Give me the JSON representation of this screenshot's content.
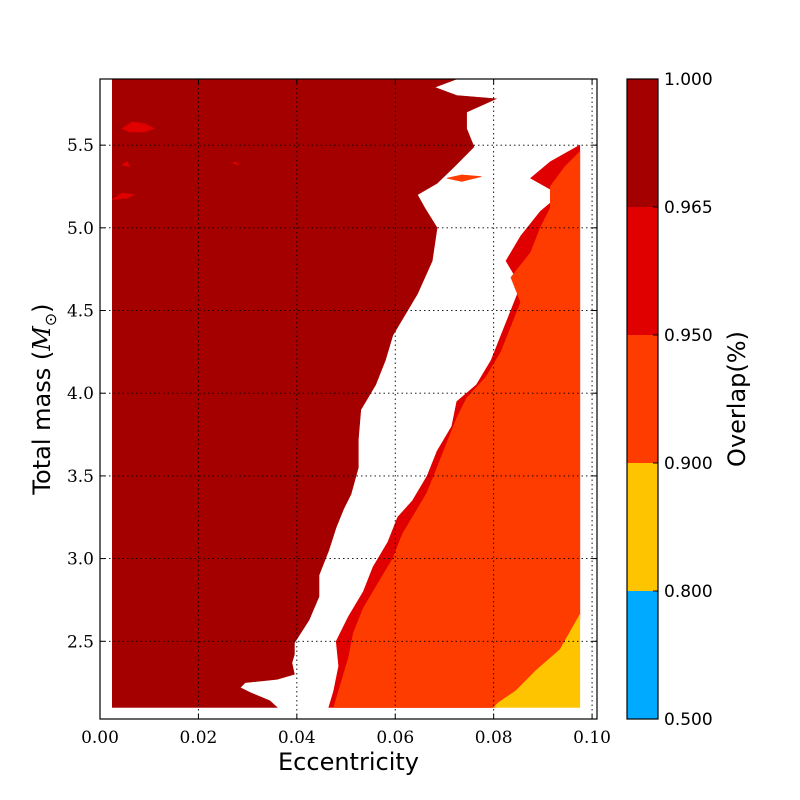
{
  "chart_data": {
    "type": "contourf",
    "xlabel": "Eccentricity",
    "ylabel_text": "Total mass (",
    "ylabel_symbol": "M",
    "ylabel_subscript": "⊙",
    "ylabel_close": ")",
    "xlim": [
      0.0,
      0.101
    ],
    "ylim": [
      2.03,
      5.9
    ],
    "data_extent": {
      "x": [
        0.0025,
        0.0975
      ],
      "y": [
        2.1,
        5.9
      ]
    },
    "xticks": [
      0.0,
      0.02,
      0.04,
      0.06,
      0.08,
      0.1
    ],
    "xtick_labels": [
      "0.00",
      "0.02",
      "0.04",
      "0.06",
      "0.08",
      "0.10"
    ],
    "yticks": [
      2.5,
      3.0,
      3.5,
      4.0,
      4.5,
      5.0,
      5.5
    ],
    "ytick_labels": [
      "2.5",
      "3.0",
      "3.5",
      "4.0",
      "4.5",
      "5.0",
      "5.5"
    ],
    "grid": true,
    "colorbar": {
      "label": "Overlap(%)",
      "levels": [
        "0.500",
        "0.800",
        "0.900",
        "0.950",
        "0.965",
        "1.000"
      ],
      "colors": [
        "#00aaff",
        "#ffc400",
        "#ff3c00",
        "#e00000",
        "#a50000"
      ]
    },
    "regions": [
      {
        "level": "0.965-1.000",
        "color": "#a50000",
        "boundary": [
          [
            0.0025,
            2.1
          ],
          [
            0.036,
            2.1
          ],
          [
            0.0345,
            2.14
          ],
          [
            0.0305,
            2.19
          ],
          [
            0.0285,
            2.22
          ],
          [
            0.0295,
            2.25
          ],
          [
            0.036,
            2.27
          ],
          [
            0.0395,
            2.3
          ],
          [
            0.039,
            2.37
          ],
          [
            0.0395,
            2.42
          ],
          [
            0.0395,
            2.49
          ],
          [
            0.0425,
            2.63
          ],
          [
            0.0445,
            2.77
          ],
          [
            0.0445,
            2.9
          ],
          [
            0.0465,
            3.05
          ],
          [
            0.048,
            3.19
          ],
          [
            0.0495,
            3.3
          ],
          [
            0.051,
            3.39
          ],
          [
            0.0525,
            3.55
          ],
          [
            0.0525,
            3.72
          ],
          [
            0.053,
            3.9
          ],
          [
            0.056,
            4.05
          ],
          [
            0.058,
            4.2
          ],
          [
            0.0595,
            4.35
          ],
          [
            0.0615,
            4.45
          ],
          [
            0.0645,
            4.6
          ],
          [
            0.0675,
            4.8
          ],
          [
            0.0685,
            5.0
          ],
          [
            0.066,
            5.12
          ],
          [
            0.0645,
            5.2
          ],
          [
            0.0685,
            5.27
          ],
          [
            0.072,
            5.37
          ],
          [
            0.076,
            5.49
          ],
          [
            0.0745,
            5.6
          ],
          [
            0.0745,
            5.7
          ],
          [
            0.0805,
            5.78
          ],
          [
            0.0725,
            5.8
          ],
          [
            0.068,
            5.85
          ],
          [
            0.0725,
            5.9
          ],
          [
            0.0025,
            5.9
          ]
        ]
      },
      {
        "level": "0.950-0.965",
        "color": "#e00000",
        "boundary": [
          [
            0.0465,
            2.1
          ],
          [
            0.0805,
            2.1
          ],
          [
            0.0805,
            2.13
          ],
          [
            0.0825,
            2.2
          ],
          [
            0.0885,
            2.32
          ],
          [
            0.0935,
            2.45
          ],
          [
            0.0975,
            2.66
          ],
          [
            0.0975,
            5.5
          ],
          [
            0.0915,
            5.4
          ],
          [
            0.0875,
            5.3
          ],
          [
            0.0935,
            5.2
          ],
          [
            0.0895,
            5.1
          ],
          [
            0.0855,
            4.95
          ],
          [
            0.0825,
            4.8
          ],
          [
            0.0855,
            4.65
          ],
          [
            0.0835,
            4.5
          ],
          [
            0.0815,
            4.35
          ],
          [
            0.0795,
            4.2
          ],
          [
            0.0765,
            4.05
          ],
          [
            0.0725,
            3.95
          ],
          [
            0.0715,
            3.8
          ],
          [
            0.0685,
            3.65
          ],
          [
            0.0665,
            3.5
          ],
          [
            0.0635,
            3.35
          ],
          [
            0.0605,
            3.25
          ],
          [
            0.0585,
            3.1
          ],
          [
            0.0555,
            2.95
          ],
          [
            0.0535,
            2.8
          ],
          [
            0.0505,
            2.65
          ],
          [
            0.048,
            2.5
          ],
          [
            0.0485,
            2.35
          ],
          [
            0.0475,
            2.2
          ]
        ]
      },
      {
        "level": "0.900-0.950",
        "color": "#ff3c00",
        "boundary": [
          [
            0.0475,
            2.1
          ],
          [
            0.0795,
            2.1
          ],
          [
            0.0835,
            2.17
          ],
          [
            0.0895,
            2.3
          ],
          [
            0.0955,
            2.45
          ],
          [
            0.0975,
            2.63
          ],
          [
            0.0975,
            5.46
          ],
          [
            0.0945,
            5.37
          ],
          [
            0.0915,
            5.25
          ],
          [
            0.0915,
            5.12
          ],
          [
            0.0895,
            5.0
          ],
          [
            0.0875,
            4.85
          ],
          [
            0.0835,
            4.7
          ],
          [
            0.0855,
            4.55
          ],
          [
            0.0835,
            4.4
          ],
          [
            0.0815,
            4.25
          ],
          [
            0.0785,
            4.1
          ],
          [
            0.0745,
            3.97
          ],
          [
            0.0725,
            3.85
          ],
          [
            0.0705,
            3.7
          ],
          [
            0.0685,
            3.55
          ],
          [
            0.0665,
            3.4
          ],
          [
            0.0645,
            3.3
          ],
          [
            0.0615,
            3.15
          ],
          [
            0.0595,
            3.0
          ],
          [
            0.0565,
            2.85
          ],
          [
            0.0535,
            2.7
          ],
          [
            0.0515,
            2.55
          ],
          [
            0.0505,
            2.4
          ],
          [
            0.049,
            2.25
          ]
        ]
      },
      {
        "level": "0.800-0.900",
        "color": "#ffc400",
        "boundary": [
          [
            0.08,
            2.1
          ],
          [
            0.0975,
            2.1
          ],
          [
            0.0975,
            2.66
          ],
          [
            0.0935,
            2.45
          ],
          [
            0.0885,
            2.32
          ],
          [
            0.0845,
            2.2
          ],
          [
            0.081,
            2.13
          ]
        ]
      }
    ],
    "islands": [
      {
        "color": "#e00000",
        "boundary": [
          [
            0.0045,
            5.6
          ],
          [
            0.0065,
            5.64
          ],
          [
            0.009,
            5.63
          ],
          [
            0.011,
            5.6
          ],
          [
            0.009,
            5.58
          ],
          [
            0.006,
            5.58
          ]
        ]
      },
      {
        "color": "#e00000",
        "boundary": [
          [
            0.0025,
            5.17
          ],
          [
            0.0045,
            5.21
          ],
          [
            0.007,
            5.2
          ],
          [
            0.0055,
            5.18
          ]
        ]
      },
      {
        "color": "#e00000",
        "boundary": [
          [
            0.0045,
            5.38
          ],
          [
            0.0055,
            5.4
          ],
          [
            0.006,
            5.37
          ]
        ]
      },
      {
        "color": "#e00000",
        "boundary": [
          [
            0.027,
            5.39
          ],
          [
            0.0275,
            5.4
          ],
          [
            0.0283,
            5.38
          ]
        ]
      },
      {
        "color": "#ff3c00",
        "boundary": [
          [
            0.0705,
            5.3
          ],
          [
            0.0735,
            5.32
          ],
          [
            0.0775,
            5.31
          ],
          [
            0.0735,
            5.28
          ]
        ]
      }
    ]
  }
}
